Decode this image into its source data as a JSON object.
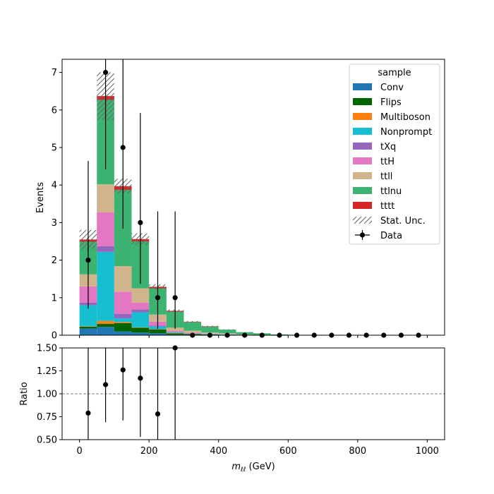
{
  "chart_data": [
    {
      "type": "bar",
      "stacked": true,
      "ylabel": "Events",
      "xlim": [
        -50,
        1050
      ],
      "ylim": [
        0,
        7.35
      ],
      "xticks": [
        0,
        200,
        400,
        600,
        800,
        1000
      ],
      "yticks": [
        0,
        1,
        2,
        3,
        4,
        5,
        6,
        7
      ],
      "bin_edges": [
        0,
        50,
        100,
        150,
        200,
        250,
        300,
        350,
        400,
        450,
        500,
        550,
        600,
        650,
        700,
        750,
        800,
        850,
        900,
        950,
        1000
      ],
      "legend_title": "sample",
      "legend_position": "top-right",
      "series": [
        {
          "name": "Conv",
          "color": "#1f77b4",
          "values": [
            0.18,
            0.22,
            0.1,
            0.07,
            0.05,
            0.02,
            0.01,
            0.01,
            0,
            0,
            0,
            0,
            0,
            0,
            0,
            0,
            0,
            0,
            0,
            0
          ]
        },
        {
          "name": "Flips",
          "color": "#006400",
          "values": [
            0.05,
            0.08,
            0.22,
            0.13,
            0.1,
            0.03,
            0.02,
            0.01,
            0.01,
            0,
            0,
            0,
            0,
            0,
            0,
            0,
            0,
            0,
            0,
            0
          ]
        },
        {
          "name": "Multiboson",
          "color": "#ff7f0e",
          "values": [
            0.01,
            0.08,
            0.03,
            0.01,
            0.01,
            0.01,
            0,
            0,
            0,
            0,
            0,
            0,
            0,
            0,
            0,
            0,
            0,
            0,
            0,
            0
          ]
        },
        {
          "name": "Nonprompt",
          "color": "#17becf",
          "values": [
            0.56,
            1.84,
            0.1,
            0.4,
            0.07,
            0.02,
            0.01,
            0.01,
            0.01,
            0,
            0,
            0,
            0,
            0,
            0,
            0,
            0,
            0,
            0,
            0
          ]
        },
        {
          "name": "tXq",
          "color": "#9467bd",
          "values": [
            0.07,
            0.15,
            0.12,
            0.08,
            0.03,
            0.01,
            0.01,
            0,
            0,
            0,
            0,
            0,
            0,
            0,
            0,
            0,
            0,
            0,
            0,
            0
          ]
        },
        {
          "name": "ttH",
          "color": "#e377c2",
          "values": [
            0.43,
            0.9,
            0.59,
            0.18,
            0.1,
            0.03,
            0.02,
            0.01,
            0.01,
            0.01,
            0,
            0,
            0,
            0,
            0,
            0,
            0,
            0,
            0,
            0
          ]
        },
        {
          "name": "ttll",
          "color": "#d2b48c",
          "values": [
            0.32,
            0.75,
            0.68,
            0.38,
            0.19,
            0.08,
            0.05,
            0.03,
            0.02,
            0.01,
            0.01,
            0,
            0,
            0,
            0,
            0,
            0,
            0,
            0,
            0
          ]
        },
        {
          "name": "ttlnu",
          "color": "#3cb371",
          "values": [
            0.87,
            2.25,
            2.03,
            1.25,
            0.7,
            0.43,
            0.23,
            0.16,
            0.1,
            0.06,
            0.04,
            0.02,
            0.01,
            0.01,
            0,
            0,
            0,
            0,
            0,
            0
          ]
        },
        {
          "name": "tttt",
          "color": "#d62728",
          "values": [
            0.06,
            0.1,
            0.1,
            0.06,
            0.04,
            0.02,
            0.01,
            0.01,
            0,
            0,
            0,
            0,
            0,
            0,
            0,
            0,
            0,
            0,
            0,
            0
          ]
        }
      ],
      "stat_unc": {
        "name": "Stat. Unc.",
        "rel_error": [
          0.1,
          0.1,
          0.05,
          0.06,
          0.05,
          0.05,
          0.05,
          0.05,
          0.05,
          0.05,
          0.05,
          0.05,
          0.05,
          0.05,
          0.05,
          0.05,
          0.05,
          0.05,
          0.05,
          0.05
        ]
      },
      "data": {
        "name": "Data",
        "x": [
          25,
          75,
          125,
          175,
          225,
          275,
          325,
          375,
          425,
          475,
          525,
          575,
          625,
          675,
          725,
          775,
          825,
          875,
          925,
          975
        ],
        "y": [
          2,
          7,
          5,
          3,
          1,
          1,
          0,
          0,
          0,
          0,
          0,
          0,
          0,
          0,
          0,
          0,
          0,
          0,
          0,
          0
        ],
        "yerr_low": [
          1.29,
          2.58,
          2.16,
          1.63,
          0.83,
          0.83,
          0,
          0,
          0,
          0,
          0,
          0,
          0,
          0,
          0,
          0,
          0,
          0,
          0,
          0
        ],
        "yerr_high": [
          2.64,
          3.77,
          3.38,
          2.92,
          2.3,
          2.3,
          0,
          0,
          0,
          0,
          0,
          0,
          0,
          0,
          0,
          0,
          0,
          0,
          0,
          0
        ]
      }
    },
    {
      "type": "scatter",
      "xlabel_main": "m",
      "xlabel_sub": "ℓℓ",
      "xlabel_unit": " (GeV)",
      "ylabel": "Ratio",
      "xlim": [
        -50,
        1050
      ],
      "ylim": [
        0.5,
        1.5
      ],
      "xticks": [
        0,
        200,
        400,
        600,
        800,
        1000
      ],
      "yticks": [
        0.5,
        0.75,
        1.0,
        1.25,
        1.5
      ],
      "ytick_labels": [
        "0.50",
        "0.75",
        "1.00",
        "1.25",
        "1.50"
      ],
      "reference_line": 1.0,
      "x": [
        25,
        75,
        125,
        175,
        225,
        275
      ],
      "y": [
        0.79,
        1.1,
        1.26,
        1.17,
        0.78,
        1.53
      ],
      "yerr_low": [
        0.51,
        0.41,
        0.55,
        0.64,
        0.65,
        1.28
      ],
      "yerr_high": [
        1.04,
        0.59,
        0.86,
        1.14,
        1.79,
        3.53
      ]
    }
  ]
}
